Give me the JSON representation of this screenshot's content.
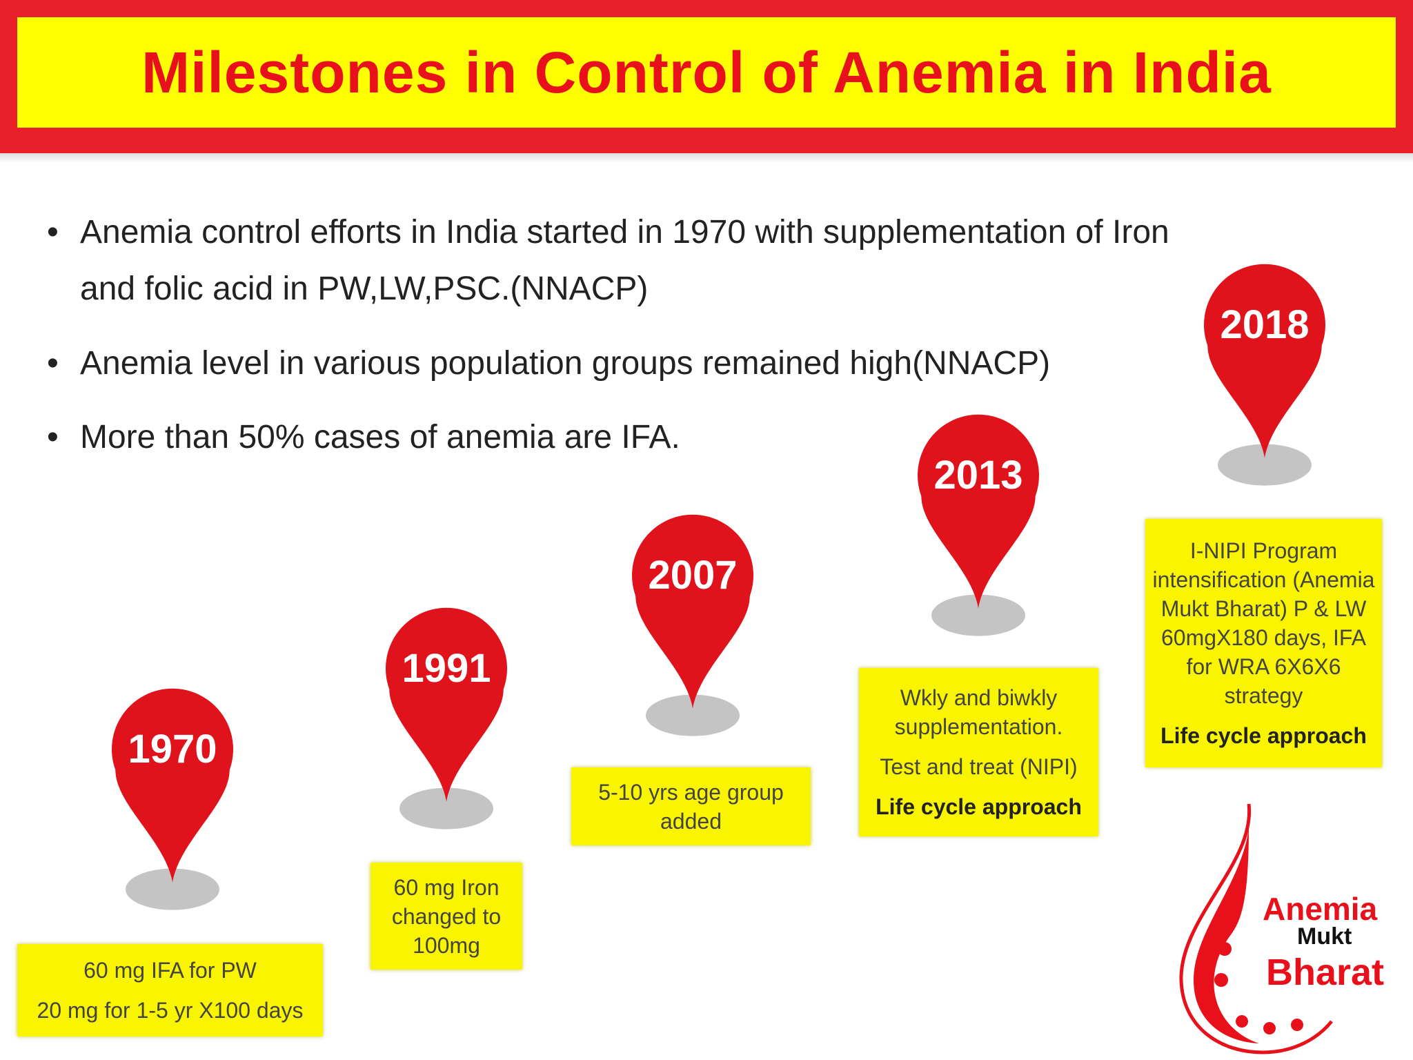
{
  "header": {
    "title": "Milestones in Control of Anemia in India"
  },
  "bullets": [
    "Anemia control efforts in India started in 1970 with supplementation of Iron and folic acid in PW,LW,PSC.(NNACP)",
    "Anemia level in various population groups remained high(NNACP)",
    "More than 50% cases of anemia are IFA."
  ],
  "milestones": [
    {
      "year": "1970",
      "lines": [
        "60 mg IFA for PW",
        "20 mg  for 1-5 yr X100 days"
      ]
    },
    {
      "year": "1991",
      "lines": [
        "60 mg Iron changed to 100mg"
      ]
    },
    {
      "year": "2007",
      "lines": [
        "5-10 yrs age group added"
      ]
    },
    {
      "year": "2013",
      "lines": [
        "Wkly and biwkly supplementation.",
        "Test and treat (NIPI)"
      ],
      "highlight": "Life cycle approach"
    },
    {
      "year": "2018",
      "lines": [
        "I-NIPI Program intensification (Anemia Mukt Bharat) P & LW 60mgX180 days, IFA for WRA 6X6X6 strategy"
      ],
      "highlight": "Life cycle approach"
    }
  ],
  "logo": {
    "line1": "Anemia",
    "line2": "Mukt",
    "line3": "Bharat"
  }
}
